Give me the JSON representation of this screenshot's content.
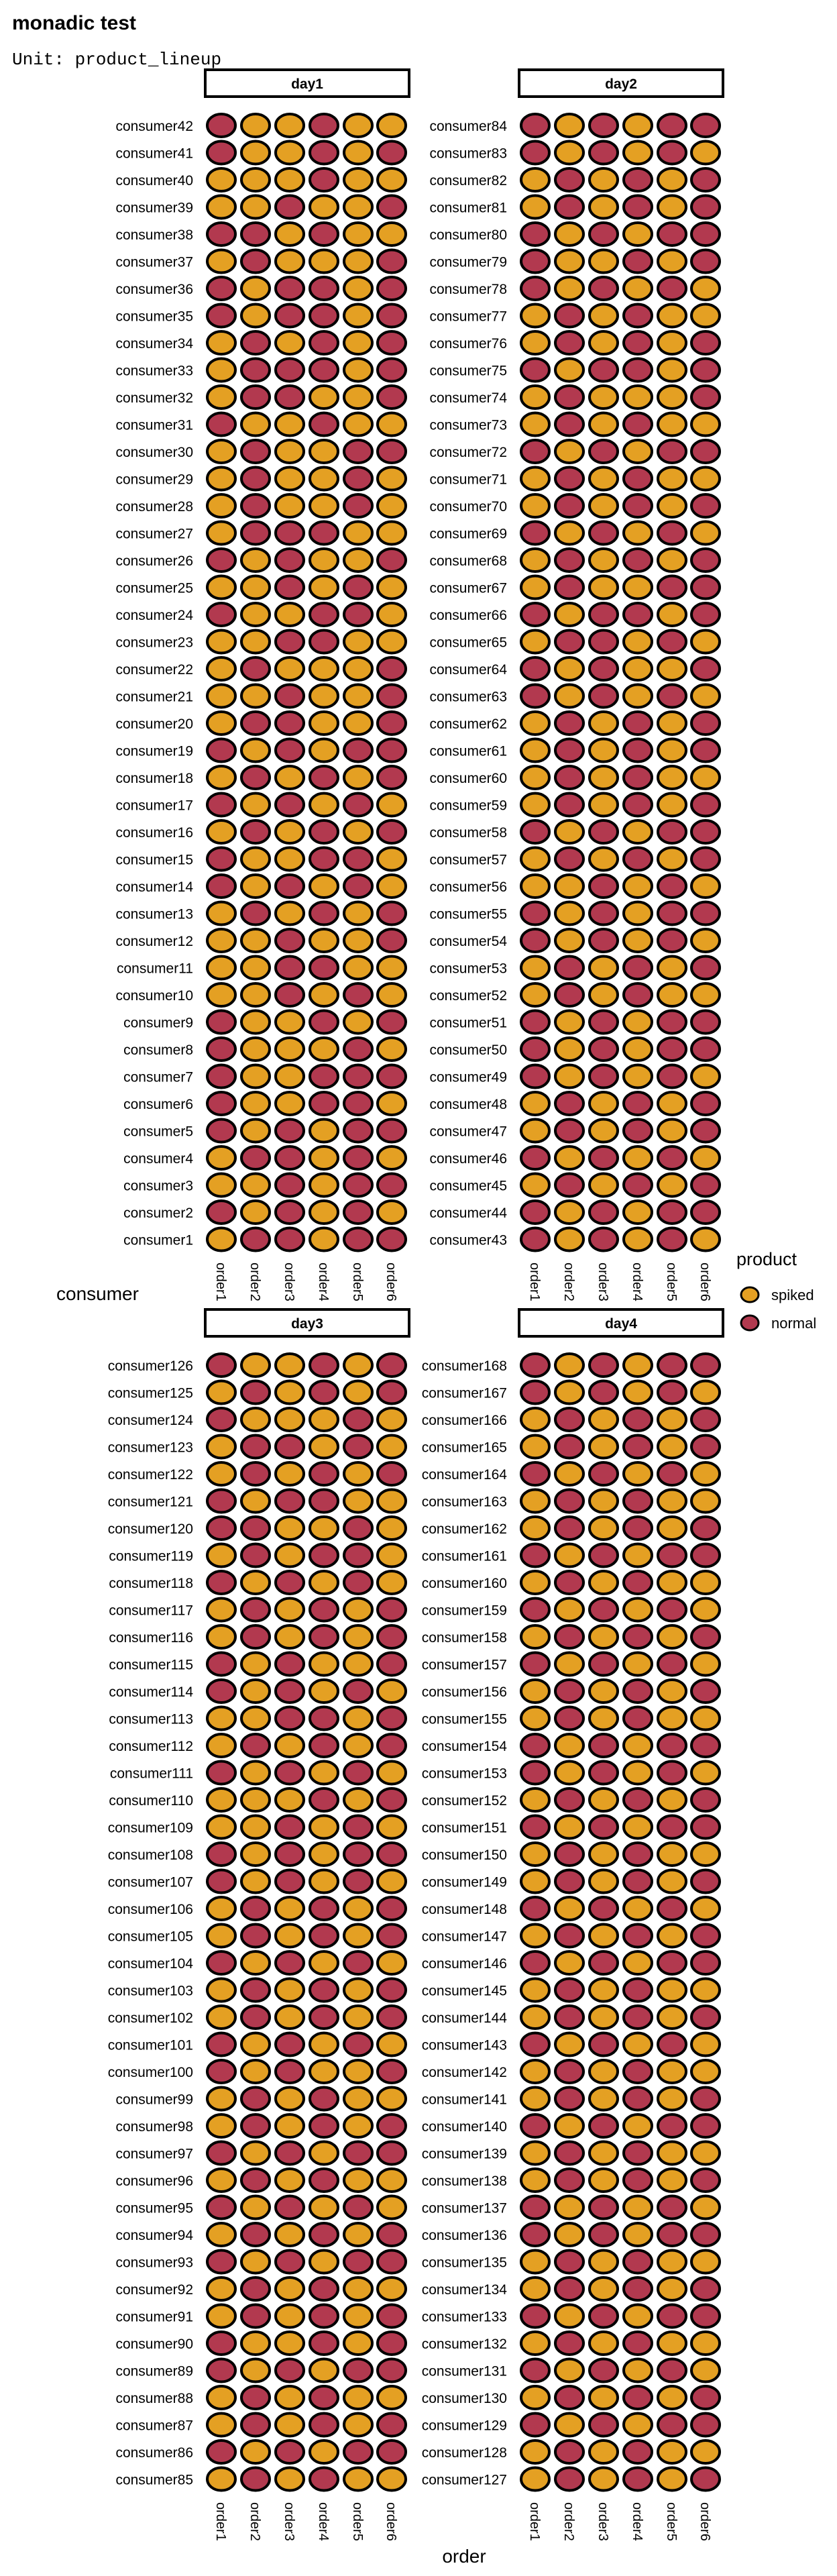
{
  "title": "monadic test",
  "subtitle": "Unit: product_lineup",
  "chart_data": {
    "type": "heatmap",
    "title": "monadic test",
    "subtitle": "Unit: product_lineup",
    "xlabel": "order",
    "ylabel": "consumer",
    "x": [
      "order1",
      "order2",
      "order3",
      "order4",
      "order5",
      "order6"
    ],
    "legend": {
      "title": "product",
      "position": "right",
      "entries": [
        {
          "name": "spiked",
          "color": "#E4A023"
        },
        {
          "name": "normal",
          "color": "#B2394F"
        }
      ]
    },
    "colors": {
      "spiked": "#E4A023",
      "normal": "#B2394F",
      "outline": "#000000"
    },
    "grid": false,
    "panels": [
      {
        "label": "day1",
        "consumers": [
          "consumer42",
          "consumer41",
          "consumer40",
          "consumer39",
          "consumer38",
          "consumer37",
          "consumer36",
          "consumer35",
          "consumer34",
          "consumer33",
          "consumer32",
          "consumer31",
          "consumer30",
          "consumer29",
          "consumer28",
          "consumer27",
          "consumer26",
          "consumer25",
          "consumer24",
          "consumer23",
          "consumer22",
          "consumer21",
          "consumer20",
          "consumer19",
          "consumer18",
          "consumer17",
          "consumer16",
          "consumer15",
          "consumer14",
          "consumer13",
          "consumer12",
          "consumer11",
          "consumer10",
          "consumer9",
          "consumer8",
          "consumer7",
          "consumer6",
          "consumer5",
          "consumer4",
          "consumer3",
          "consumer2",
          "consumer1"
        ],
        "pattern": [
          "NSSNSS",
          "NSSNSN",
          "SSSNSS",
          "SSNSSN",
          "NNSNSS",
          "SNSSSN",
          "NSNNSN",
          "NSNNSN",
          "SNSNSN",
          "SNNNSN",
          "SNNSSN",
          "NSSNSS",
          "SNSSNN",
          "SNSSNS",
          "SNSSNS",
          "SNNNSS",
          "NSNSSN",
          "SSNSNS",
          "NSSNNS",
          "SSNNSS",
          "SNSSSN",
          "SSNSSN",
          "SNNSSN",
          "NSNSNN",
          "SNSNSN",
          "NSNSNS",
          "SNSNSN",
          "NSSNNS",
          "NSNSNS",
          "SNSNSN",
          "SSNSSN",
          "SSNNSS",
          "SSNSNS",
          "NSSNSN",
          "NSSSNS",
          "NSSNNN",
          "NSSNNS",
          "NSNSNN",
          "SNNSNS",
          "SSNSNN",
          "NSNSNS",
          "SNNSNN"
        ]
      },
      {
        "label": "day2",
        "consumers": [
          "consumer84",
          "consumer83",
          "consumer82",
          "consumer81",
          "consumer80",
          "consumer79",
          "consumer78",
          "consumer77",
          "consumer76",
          "consumer75",
          "consumer74",
          "consumer73",
          "consumer72",
          "consumer71",
          "consumer70",
          "consumer69",
          "consumer68",
          "consumer67",
          "consumer66",
          "consumer65",
          "consumer64",
          "consumer63",
          "consumer62",
          "consumer61",
          "consumer60",
          "consumer59",
          "consumer58",
          "consumer57",
          "consumer56",
          "consumer55",
          "consumer54",
          "consumer53",
          "consumer52",
          "consumer51",
          "consumer50",
          "consumer49",
          "consumer48",
          "consumer47",
          "consumer46",
          "consumer45",
          "consumer44",
          "consumer43"
        ],
        "pattern": [
          "NSNSNN",
          "NSNSNS",
          "SNSNSN",
          "SNSNSN",
          "NSNSNN",
          "NSSNSN",
          "NSNSNS",
          "SNSNSS",
          "SNSNSN",
          "NSNNSN",
          "SNSSSN",
          "SNSNSS",
          "NSNSNN",
          "SNSNSS",
          "SNSNSN",
          "NSNSNS",
          "SNSNSN",
          "SNSSNN",
          "NSNNSN",
          "SNNSNS",
          "NSNSSN",
          "NSNSNS",
          "SNSNSN",
          "SNSNSN",
          "SNSNSS",
          "SNSNSN",
          "NSNSNN",
          "SNSNSN",
          "SSNSNS",
          "NSNSNN",
          "NSNSNS",
          "SNSNSN",
          "SNSNSS",
          "NSNSNN",
          "NSNSNN",
          "NSNSNS",
          "SNSNSN",
          "SNSNSN",
          "NSNSNS",
          "SNSNSN",
          "NSNSNN",
          "NSNSNS"
        ]
      },
      {
        "label": "day3",
        "consumers": [
          "consumer126",
          "consumer125",
          "consumer124",
          "consumer123",
          "consumer122",
          "consumer121",
          "consumer120",
          "consumer119",
          "consumer118",
          "consumer117",
          "consumer116",
          "consumer115",
          "consumer114",
          "consumer113",
          "consumer112",
          "consumer111",
          "consumer110",
          "consumer109",
          "consumer108",
          "consumer107",
          "consumer106",
          "consumer105",
          "consumer104",
          "consumer103",
          "consumer102",
          "consumer101",
          "consumer100",
          "consumer99",
          "consumer98",
          "consumer97",
          "consumer96",
          "consumer95",
          "consumer94",
          "consumer93",
          "consumer92",
          "consumer91",
          "consumer90",
          "consumer89",
          "consumer88",
          "consumer87",
          "consumer86",
          "consumer85"
        ],
        "pattern": [
          "NSSNSN",
          "SNSNSN",
          "NSSSNS",
          "SNNSNS",
          "SNSNSN",
          "NSNNSS",
          "NNSSNS",
          "SNSNNS",
          "NSNSNS",
          "SNSNSN",
          "SNSNSN",
          "NSNSSN",
          "NSNSNS",
          "SSNNSN",
          "SNSNSN",
          "NSNSNS",
          "SSSNSN",
          "SSNSNS",
          "NSNSNN",
          "NSNSNS",
          "SNSNSN",
          "SNSNSN",
          "NSNSNS",
          "SNSNSN",
          "SNSNSN",
          "NSNSNS",
          "NSNSSN",
          "SNSNSS",
          "SNSNSN",
          "NSNSNN",
          "SNSNSS",
          "NSNSNS",
          "SNSNSN",
          "NSNSNN",
          "SNSNSS",
          "SNSNSN",
          "NSSNSN",
          "NSNSNN",
          "SNSNSS",
          "SNSNSN",
          "NSNSNN",
          "SNSNSS"
        ]
      },
      {
        "label": "day4",
        "consumers": [
          "consumer168",
          "consumer167",
          "consumer166",
          "consumer165",
          "consumer164",
          "consumer163",
          "consumer162",
          "consumer161",
          "consumer160",
          "consumer159",
          "consumer158",
          "consumer157",
          "consumer156",
          "consumer155",
          "consumer154",
          "consumer153",
          "consumer152",
          "consumer151",
          "consumer150",
          "consumer149",
          "consumer148",
          "consumer147",
          "consumer146",
          "consumer145",
          "consumer144",
          "consumer143",
          "consumer142",
          "consumer141",
          "consumer140",
          "consumer139",
          "consumer138",
          "consumer137",
          "consumer136",
          "consumer135",
          "consumer134",
          "consumer133",
          "consumer132",
          "consumer131",
          "consumer130",
          "consumer129",
          "consumer128",
          "consumer127"
        ],
        "pattern": [
          "NSNSNN",
          "NSNSNS",
          "SNSNSN",
          "SNSNSN",
          "NSNSNS",
          "SNSNSS",
          "SNSNSN",
          "NSNSNN",
          "SNSNSS",
          "NSNSNS",
          "SNSNSN",
          "NSNSNS",
          "SNSNSN",
          "SNSNSS",
          "NSNSNN",
          "NSNSNS",
          "SNSNSN",
          "NSNSNN",
          "SNSNSS",
          "SNSNSN",
          "NSNSNS",
          "SNSNSN",
          "NSNSNN",
          "SNSNSS",
          "SNSNSN",
          "NSNSNS",
          "SNSNSS",
          "SNSNSN",
          "NSNSNN",
          "SNSNSS",
          "SNSNSN",
          "NSNSNS",
          "NSNSNN",
          "SNSNSS",
          "SNSNSN",
          "NSNSNN",
          "SNSNSS",
          "NSNSNS",
          "SNSNSN",
          "NSNSNN",
          "SNSNSS",
          "SNSNSN"
        ]
      }
    ]
  }
}
